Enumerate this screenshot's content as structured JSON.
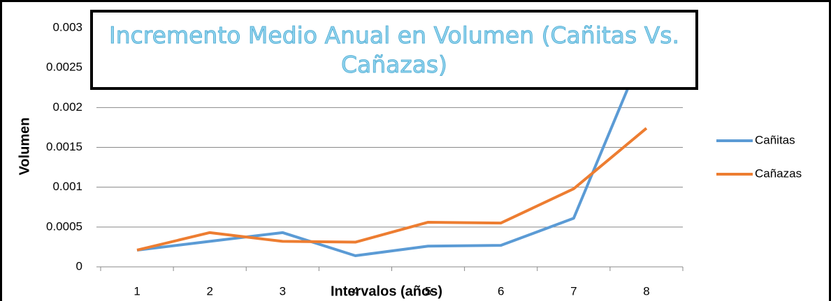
{
  "chart_data": {
    "type": "line",
    "title": "Incremento Medio Anual en Volumen (Cañitas Vs. Cañazas)",
    "x_label": "Intervalos (años)",
    "y_label": "Volumen",
    "categories": [
      "1",
      "2",
      "3",
      "4",
      "5",
      "6",
      "7",
      "8"
    ],
    "series": [
      {
        "name": "Cañitas",
        "color": "#5b9bd5",
        "values": [
          0.00021,
          0.00032,
          0.00043,
          0.00014,
          0.00026,
          0.00027,
          0.00061,
          0.0028
        ]
      },
      {
        "name": "Cañazas",
        "color": "#ed7d31",
        "values": [
          0.00021,
          0.00043,
          0.00032,
          0.00031,
          0.00056,
          0.00055,
          0.00098,
          0.00174
        ]
      }
    ],
    "ylim": [
      0,
      0.003
    ],
    "yticks": [
      0,
      0.0005,
      0.001,
      0.0015,
      0.002,
      0.0025,
      0.003
    ],
    "grid": true,
    "legend": "right"
  }
}
